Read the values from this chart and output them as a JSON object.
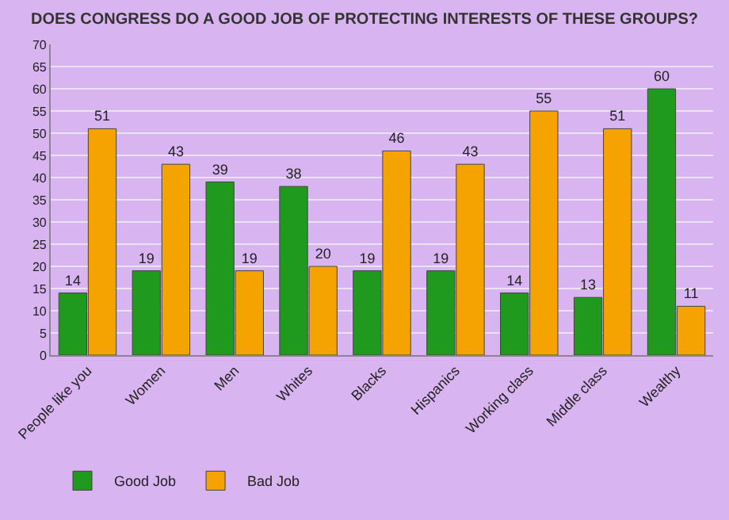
{
  "chart_data": {
    "type": "bar",
    "title": "DOES CONGRESS DO A GOOD JOB OF PROTECTING INTERESTS OF THESE GROUPS?",
    "categories": [
      "People like you",
      "Women",
      "Men",
      "Whites",
      "Blacks",
      "Hispanics",
      "Working class",
      "Middle class",
      "Wealthy"
    ],
    "series": [
      {
        "name": "Good Job",
        "color": "#1f9a1f",
        "values": [
          14,
          19,
          39,
          38,
          19,
          19,
          14,
          13,
          60
        ]
      },
      {
        "name": "Bad Job",
        "color": "#f5a300",
        "values": [
          51,
          43,
          19,
          20,
          46,
          43,
          55,
          51,
          11
        ]
      }
    ],
    "ylim": [
      0,
      70
    ],
    "yticks": [
      0,
      5,
      10,
      15,
      20,
      25,
      30,
      35,
      40,
      45,
      50,
      55,
      60,
      65,
      70
    ],
    "grid": "y",
    "legend": "bottom left",
    "data_labels": true
  }
}
